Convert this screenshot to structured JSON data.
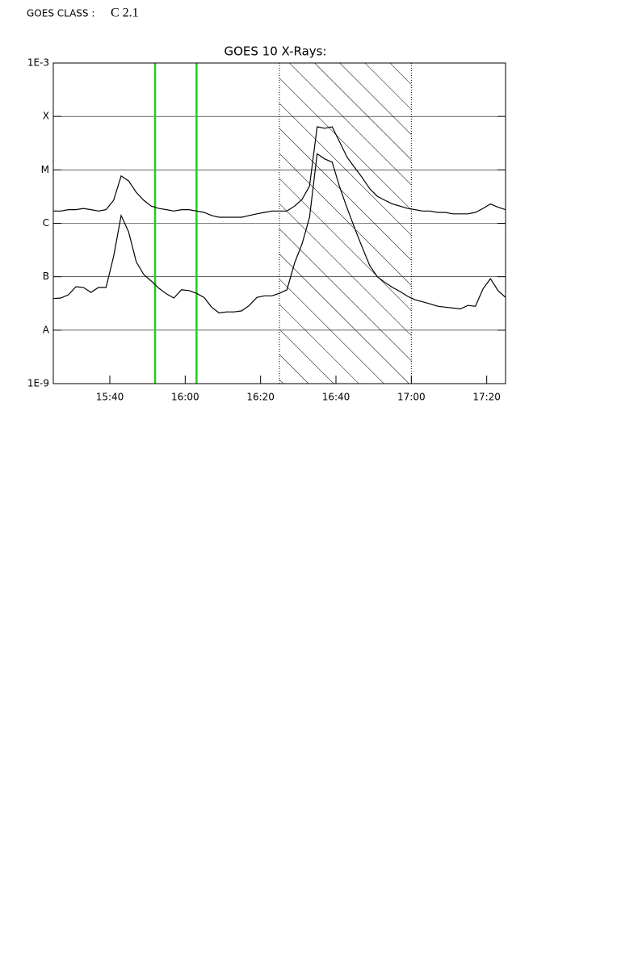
{
  "class_label": "GOES CLASS :",
  "class_value": "C 2.1",
  "chart_data": {
    "type": "line",
    "title": "GOES 10 X-Rays:",
    "log_scale": true,
    "grid": true,
    "x": [
      "15:25",
      "15:27",
      "15:29",
      "15:31",
      "15:33",
      "15:35",
      "15:37",
      "15:39",
      "15:41",
      "15:43",
      "15:45",
      "15:47",
      "15:49",
      "15:51",
      "15:53",
      "15:55",
      "15:57",
      "15:59",
      "16:01",
      "16:03",
      "16:05",
      "16:07",
      "16:09",
      "16:11",
      "16:13",
      "16:15",
      "16:17",
      "16:19",
      "16:21",
      "16:23",
      "16:25",
      "16:27",
      "16:29",
      "16:31",
      "16:33",
      "16:35",
      "16:37",
      "16:39",
      "16:41",
      "16:43",
      "16:45",
      "16:47",
      "16:49",
      "16:51",
      "16:53",
      "16:55",
      "16:57",
      "16:59",
      "17:01",
      "17:03",
      "17:05",
      "17:07",
      "17:09",
      "17:11",
      "17:13",
      "17:15",
      "17:17",
      "17:19",
      "17:21",
      "17:23",
      "17:25"
    ],
    "series": [
      {
        "color": "#000000",
        "values": [
          1.7e-06,
          1.7e-06,
          1.8e-06,
          1.8e-06,
          1.9e-06,
          1.8e-06,
          1.7e-06,
          1.8e-06,
          2.7e-06,
          7.7e-06,
          6.2e-06,
          3.8e-06,
          2.7e-06,
          2.1e-06,
          1.9e-06,
          1.8e-06,
          1.7e-06,
          1.8e-06,
          1.8e-06,
          1.7e-06,
          1.6e-06,
          1.4e-06,
          1.3e-06,
          1.3e-06,
          1.3e-06,
          1.3e-06,
          1.4e-06,
          1.5e-06,
          1.6e-06,
          1.7e-06,
          1.7e-06,
          1.7e-06,
          2.1e-06,
          2.8e-06,
          5e-06,
          6.4e-05,
          6e-05,
          6.4e-05,
          3.3e-05,
          1.7e-05,
          1.1e-05,
          7.1e-06,
          4.4e-06,
          3.2e-06,
          2.7e-06,
          2.3e-06,
          2.1e-06,
          1.9e-06,
          1.8e-06,
          1.7e-06,
          1.7e-06,
          1.6e-06,
          1.6e-06,
          1.5e-06,
          1.5e-06,
          1.5e-06,
          1.6e-06,
          1.9e-06,
          2.3e-06,
          2e-06,
          1.8e-06
        ]
      },
      {
        "color": "#000000",
        "values": [
          3.9e-08,
          4e-08,
          4.6e-08,
          6.5e-08,
          6.3e-08,
          5.1e-08,
          6.3e-08,
          6.3e-08,
          2.4e-07,
          1.4e-06,
          6.9e-07,
          1.9e-07,
          1.1e-07,
          8.3e-08,
          6.1e-08,
          4.8e-08,
          4e-08,
          5.7e-08,
          5.5e-08,
          4.9e-08,
          4.1e-08,
          2.7e-08,
          2.1e-08,
          2.2e-08,
          2.2e-08,
          2.3e-08,
          2.9e-08,
          4.1e-08,
          4.4e-08,
          4.4e-08,
          4.9e-08,
          5.7e-08,
          1.8e-07,
          4.1e-07,
          1.3e-06,
          2e-05,
          1.6e-05,
          1.4e-05,
          4.7e-06,
          1.9e-06,
          8e-07,
          3.5e-07,
          1.6e-07,
          1e-07,
          7.8e-08,
          6.3e-08,
          5.3e-08,
          4.3e-08,
          3.7e-08,
          3.4e-08,
          3.1e-08,
          2.8e-08,
          2.7e-08,
          2.6e-08,
          2.5e-08,
          2.9e-08,
          2.8e-08,
          5.9e-08,
          9.2e-08,
          5.5e-08,
          4.1e-08
        ]
      }
    ],
    "xlim": [
      "15:25",
      "17:25"
    ],
    "xticks": [
      "15:40",
      "16:00",
      "16:20",
      "16:40",
      "17:00",
      "17:20"
    ],
    "ylim": [
      1e-09,
      0.001
    ],
    "yticks": [
      {
        "value": 1e-09,
        "label": "1E-9"
      },
      {
        "value": 1e-08,
        "label": "A"
      },
      {
        "value": 1e-07,
        "label": "B"
      },
      {
        "value": 1e-06,
        "label": "C"
      },
      {
        "value": 1e-05,
        "label": "M"
      },
      {
        "value": 0.0001,
        "label": "X"
      },
      {
        "value": 0.001,
        "label": "1E-3"
      }
    ],
    "markers": {
      "color": "#22cc22",
      "x": [
        "15:52",
        "16:03"
      ]
    },
    "shaded_region": [
      "16:25",
      "17:00"
    ]
  }
}
